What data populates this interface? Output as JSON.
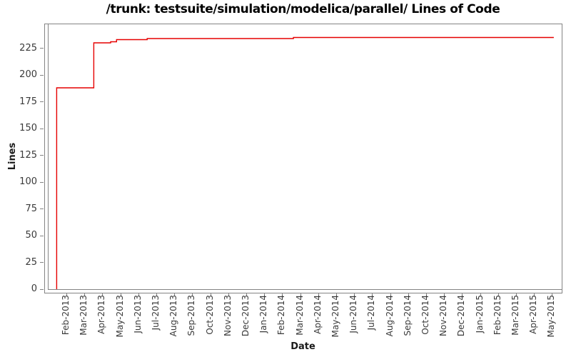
{
  "page": {
    "title": "/trunk: testsuite/simulation/modelica/parallel/ Lines of Code"
  },
  "chart_data": {
    "type": "line",
    "subtype": "step-after",
    "title": "/trunk: testsuite/simulation/modelica/parallel/ Lines of Code",
    "xlabel": "Date",
    "ylabel": "Lines",
    "line_color": "#e60000",
    "axis_color": "#848484",
    "grid": false,
    "legend": "none",
    "ylim": [
      0,
      240
    ],
    "y_ticks": [
      0,
      25,
      50,
      75,
      100,
      125,
      150,
      175,
      200,
      225
    ],
    "x_tick_labels": [
      "Feb-2013",
      "Mar-2013",
      "Apr-2013",
      "May-2013",
      "Jun-2013",
      "Jul-2013",
      "Aug-2013",
      "Sep-2013",
      "Oct-2013",
      "Nov-2013",
      "Dec-2013",
      "Jan-2014",
      "Feb-2014",
      "Mar-2014",
      "Apr-2014",
      "May-2014",
      "Jun-2014",
      "Jul-2014",
      "Aug-2014",
      "Sep-2014",
      "Oct-2014",
      "Nov-2014",
      "Dec-2014",
      "Jan-2015",
      "Feb-2015",
      "Mar-2015",
      "Apr-2015",
      "May-2015"
    ],
    "series": [
      {
        "name": "Lines of Code",
        "points": [
          {
            "date": "2013-01-15",
            "value": 0
          },
          {
            "date": "2013-01-15",
            "value": 188
          },
          {
            "date": "2013-03-17",
            "value": 230
          },
          {
            "date": "2013-04-15",
            "value": 231
          },
          {
            "date": "2013-04-25",
            "value": 233
          },
          {
            "date": "2013-06-16",
            "value": 234
          },
          {
            "date": "2014-02-20",
            "value": 235
          },
          {
            "date": "2015-05-04",
            "value": 235
          }
        ]
      }
    ]
  }
}
